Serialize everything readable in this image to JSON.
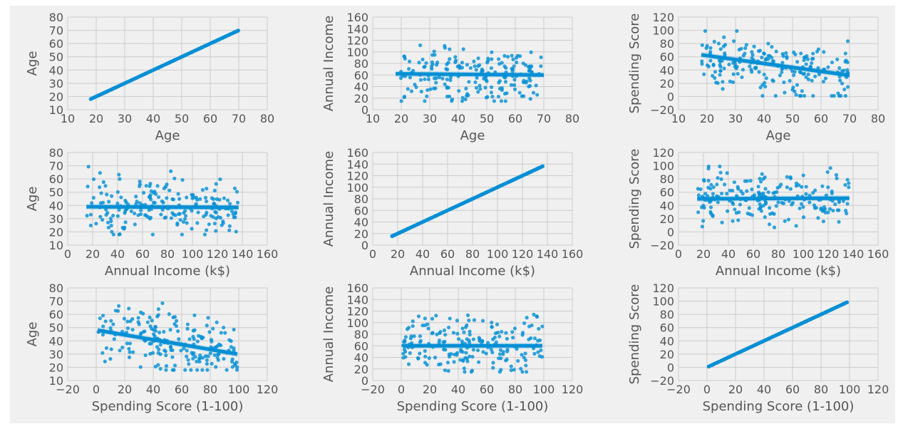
{
  "chart_data": [
    {
      "type": "scatter",
      "xlabel": "Age",
      "ylabel": "Age",
      "xlim": [
        10,
        80
      ],
      "ylim": [
        10,
        80
      ],
      "xticks": [
        10,
        20,
        30,
        40,
        50,
        60,
        70,
        80
      ],
      "yticks": [
        10,
        20,
        30,
        40,
        50,
        60,
        70,
        80
      ],
      "identity": true,
      "x_range": [
        18,
        70
      ],
      "regression": {
        "x0": 18,
        "y0": 18,
        "x1": 70,
        "y1": 70
      },
      "point_count": 200
    },
    {
      "type": "scatter",
      "xlabel": "Age",
      "ylabel": "Annual Income",
      "xlim": [
        10,
        80
      ],
      "ylim": [
        0,
        160
      ],
      "xticks": [
        10,
        20,
        30,
        40,
        50,
        60,
        70,
        80
      ],
      "yticks": [
        0,
        20,
        40,
        60,
        80,
        100,
        120,
        140,
        160
      ],
      "identity": false,
      "x_range": [
        18,
        70
      ],
      "y_range": [
        15,
        137
      ],
      "regression": {
        "x0": 18,
        "y0": 62,
        "x1": 70,
        "y1": 60
      },
      "point_count": 200
    },
    {
      "type": "scatter",
      "xlabel": "Age",
      "ylabel": "Spending Score",
      "xlim": [
        10,
        80
      ],
      "ylim": [
        -20,
        120
      ],
      "xticks": [
        10,
        20,
        30,
        40,
        50,
        60,
        70,
        80
      ],
      "yticks": [
        -20,
        0,
        20,
        40,
        60,
        80,
        100,
        120
      ],
      "identity": false,
      "x_range": [
        18,
        70
      ],
      "y_range": [
        1,
        99
      ],
      "regression": {
        "x0": 18,
        "y0": 63,
        "x1": 70,
        "y1": 32
      },
      "point_count": 200
    },
    {
      "type": "scatter",
      "xlabel": "Annual Income (k$)",
      "ylabel": "Age",
      "xlim": [
        0,
        160
      ],
      "ylim": [
        10,
        80
      ],
      "xticks": [
        0,
        20,
        40,
        60,
        80,
        100,
        120,
        140,
        160
      ],
      "yticks": [
        10,
        20,
        30,
        40,
        50,
        60,
        70,
        80
      ],
      "identity": false,
      "x_range": [
        15,
        137
      ],
      "y_range": [
        18,
        70
      ],
      "regression": {
        "x0": 15,
        "y0": 39,
        "x1": 137,
        "y1": 38.5
      },
      "point_count": 200
    },
    {
      "type": "scatter",
      "xlabel": "Annual Income (k$)",
      "ylabel": "Annual Income",
      "xlim": [
        0,
        160
      ],
      "ylim": [
        0,
        160
      ],
      "xticks": [
        0,
        20,
        40,
        60,
        80,
        100,
        120,
        140,
        160
      ],
      "yticks": [
        0,
        20,
        40,
        60,
        80,
        100,
        120,
        140,
        160
      ],
      "identity": true,
      "x_range": [
        15,
        137
      ],
      "regression": {
        "x0": 15,
        "y0": 15,
        "x1": 137,
        "y1": 137
      },
      "point_count": 200
    },
    {
      "type": "scatter",
      "xlabel": "Annual Income (k$)",
      "ylabel": "Spending Score",
      "xlim": [
        0,
        160
      ],
      "ylim": [
        -20,
        120
      ],
      "xticks": [
        0,
        20,
        40,
        60,
        80,
        100,
        120,
        140,
        160
      ],
      "yticks": [
        -20,
        0,
        20,
        40,
        60,
        80,
        100,
        120
      ],
      "identity": false,
      "x_range": [
        15,
        137
      ],
      "y_range": [
        1,
        99
      ],
      "regression": {
        "x0": 15,
        "y0": 50,
        "x1": 137,
        "y1": 51
      },
      "point_count": 200
    },
    {
      "type": "scatter",
      "xlabel": "Spending Score (1-100)",
      "ylabel": "Age",
      "xlim": [
        -20,
        120
      ],
      "ylim": [
        10,
        80
      ],
      "xticks": [
        -20,
        0,
        20,
        40,
        60,
        80,
        100,
        120
      ],
      "yticks": [
        10,
        20,
        30,
        40,
        50,
        60,
        70,
        80
      ],
      "identity": false,
      "x_range": [
        1,
        99
      ],
      "y_range": [
        18,
        70
      ],
      "regression": {
        "x0": 1,
        "y0": 48,
        "x1": 99,
        "y1": 30
      },
      "point_count": 200
    },
    {
      "type": "scatter",
      "xlabel": "Spending Score (1-100)",
      "ylabel": "Annual Income",
      "xlim": [
        -20,
        120
      ],
      "ylim": [
        0,
        160
      ],
      "xticks": [
        -20,
        0,
        20,
        40,
        60,
        80,
        100,
        120
      ],
      "yticks": [
        0,
        20,
        40,
        60,
        80,
        100,
        120,
        140,
        160
      ],
      "identity": false,
      "x_range": [
        1,
        99
      ],
      "y_range": [
        15,
        137
      ],
      "regression": {
        "x0": 1,
        "y0": 60,
        "x1": 99,
        "y1": 60
      },
      "point_count": 200
    },
    {
      "type": "scatter",
      "xlabel": "Spending Score (1-100)",
      "ylabel": "Spending Score",
      "xlim": [
        -20,
        120
      ],
      "ylim": [
        -20,
        120
      ],
      "xticks": [
        -20,
        0,
        20,
        40,
        60,
        80,
        100,
        120
      ],
      "yticks": [
        -20,
        0,
        20,
        40,
        60,
        80,
        100,
        120
      ],
      "identity": true,
      "x_range": [
        1,
        99
      ],
      "regression": {
        "x0": 1,
        "y0": 1,
        "x1": 99,
        "y1": 99
      },
      "point_count": 200
    }
  ],
  "colors": {
    "series": "#008fd5",
    "background": "#f0f0f0",
    "grid": "#cbcbcb",
    "text": "#555555"
  }
}
